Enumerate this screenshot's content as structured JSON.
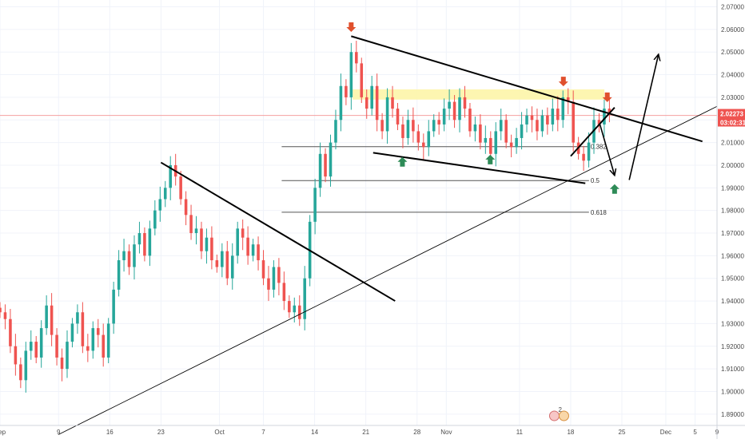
{
  "chart_data": {
    "type": "candlestick",
    "price_axis": {
      "min": 1.885,
      "max": 2.073,
      "ticks": [
        "1.89000",
        "1.90000",
        "1.91000",
        "1.92000",
        "1.93000",
        "1.94000",
        "1.95000",
        "1.96000",
        "1.97000",
        "1.98000",
        "1.99000",
        "2.00000",
        "2.01000",
        "2.02000",
        "2.03000",
        "2.04000",
        "2.05000",
        "2.06000",
        "2.07000"
      ]
    },
    "time_axis": {
      "start_day": 0,
      "end_day": 98,
      "ticks": [
        {
          "day": 0,
          "label": "Sep"
        },
        {
          "day": 8,
          "label": "9"
        },
        {
          "day": 15,
          "label": "16"
        },
        {
          "day": 22,
          "label": "23"
        },
        {
          "day": 30,
          "label": "Oct"
        },
        {
          "day": 36,
          "label": "7"
        },
        {
          "day": 43,
          "label": "14"
        },
        {
          "day": 50,
          "label": "21"
        },
        {
          "day": 57,
          "label": "28"
        },
        {
          "day": 61,
          "label": "Nov"
        },
        {
          "day": 71,
          "label": "11"
        },
        {
          "day": 78,
          "label": "18"
        },
        {
          "day": 85,
          "label": "25"
        },
        {
          "day": 91,
          "label": "Dec"
        },
        {
          "day": 95,
          "label": "5"
        },
        {
          "day": 98,
          "label": "9"
        }
      ]
    },
    "current_price": {
      "value": 2.02273,
      "label": "2.02273",
      "countdown": "03:02:31"
    },
    "series": [
      {
        "name": "candles",
        "values": [
          1.935,
          1.932,
          1.92,
          1.912,
          1.905,
          1.918,
          1.922,
          1.915,
          1.928,
          1.938,
          1.925,
          1.915,
          1.91,
          1.922,
          1.93,
          1.935,
          1.92,
          1.918,
          1.928,
          1.925,
          1.915,
          1.93,
          1.945,
          1.958,
          1.962,
          1.955,
          1.965,
          1.97,
          1.96,
          1.972,
          1.98,
          1.985,
          1.99,
          2.0,
          1.995,
          1.985,
          1.978,
          1.97,
          1.972,
          1.962,
          1.968,
          1.958,
          1.955,
          1.962,
          1.95,
          1.96,
          1.972,
          1.968,
          1.96,
          1.965,
          1.958,
          1.95,
          1.945,
          1.955,
          1.948,
          1.94,
          1.935,
          1.938,
          1.932,
          1.95,
          1.975,
          1.99,
          2.005,
          1.995,
          2.01,
          2.02,
          2.035,
          2.03,
          2.05,
          2.045,
          2.03,
          2.025,
          2.035,
          2.02,
          2.015,
          2.03,
          2.025,
          2.018,
          2.012,
          2.02,
          2.015,
          2.01,
          2.008,
          2.015,
          2.02,
          2.018,
          2.025,
          2.028,
          2.02,
          2.03,
          2.025,
          2.015,
          2.018,
          2.01,
          2.012,
          2.005,
          2.015,
          2.02,
          2.01,
          2.008,
          2.012,
          2.018,
          2.022,
          2.02,
          2.015,
          2.022,
          2.018,
          2.025,
          2.02,
          2.03,
          2.028,
          2.01,
          2.005,
          2.002,
          2.01,
          2.02,
          2.018,
          2.025,
          2.023
        ]
      }
    ],
    "horizontal_lines": [
      {
        "name": "resistance-level",
        "value": 2.022,
        "color": "#f4a0a0"
      }
    ],
    "fib_levels": [
      {
        "level": 0.382,
        "label": "0.382",
        "value": 2.0082
      },
      {
        "level": 0.5,
        "label": "0.5",
        "value": 1.9932
      },
      {
        "level": 0.618,
        "label": "0.618",
        "value": 1.9792
      }
    ],
    "fib_extra_line": {
      "value": 2.0082
    },
    "resistance_zone": {
      "price_low": 2.029,
      "price_high": 2.0335,
      "color": "#fdf5a8"
    },
    "colors": {
      "up": "#26a69a",
      "down": "#ef5350",
      "current_price_tag": "#ef5350",
      "trendline": "#000000",
      "arrow_down": "#e0502d",
      "arrow_up": "#2e8b57"
    },
    "trendlines": [
      {
        "name": "sep-downtrend",
        "points": [
          [
            22,
            2.0012
          ],
          [
            54,
            1.94
          ]
        ]
      },
      {
        "name": "major-uptrend",
        "points": [
          [
            8,
            1.881
          ],
          [
            98,
            2.026
          ]
        ]
      },
      {
        "name": "triangle-upper",
        "points": [
          [
            48,
            2.057
          ],
          [
            96,
            2.0105
          ]
        ]
      },
      {
        "name": "triangle-lower",
        "points": [
          [
            51,
            2.0055
          ],
          [
            80,
            1.992
          ]
        ]
      },
      {
        "name": "rising-wedge",
        "points": [
          [
            78,
            2.004
          ],
          [
            84,
            2.0255
          ]
        ]
      }
    ],
    "projection_arrows": [
      {
        "name": "drop-arrow",
        "from": [
          82,
          2.018
        ],
        "to": [
          84,
          1.9955
        ]
      },
      {
        "name": "rally-arrow",
        "from": [
          86,
          1.9935
        ],
        "to": [
          90,
          2.049
        ]
      }
    ],
    "signal_arrows": [
      {
        "direction": "down",
        "day": 48,
        "price": 2.061
      },
      {
        "direction": "down",
        "day": 77,
        "price": 2.037
      },
      {
        "direction": "down",
        "day": 83,
        "price": 2.03
      },
      {
        "direction": "up",
        "day": 55,
        "price": 2.0015
      },
      {
        "direction": "up",
        "day": 67,
        "price": 2.0025
      },
      {
        "direction": "up",
        "day": 84,
        "price": 1.9895
      }
    ],
    "event_icons": [
      "2"
    ]
  }
}
